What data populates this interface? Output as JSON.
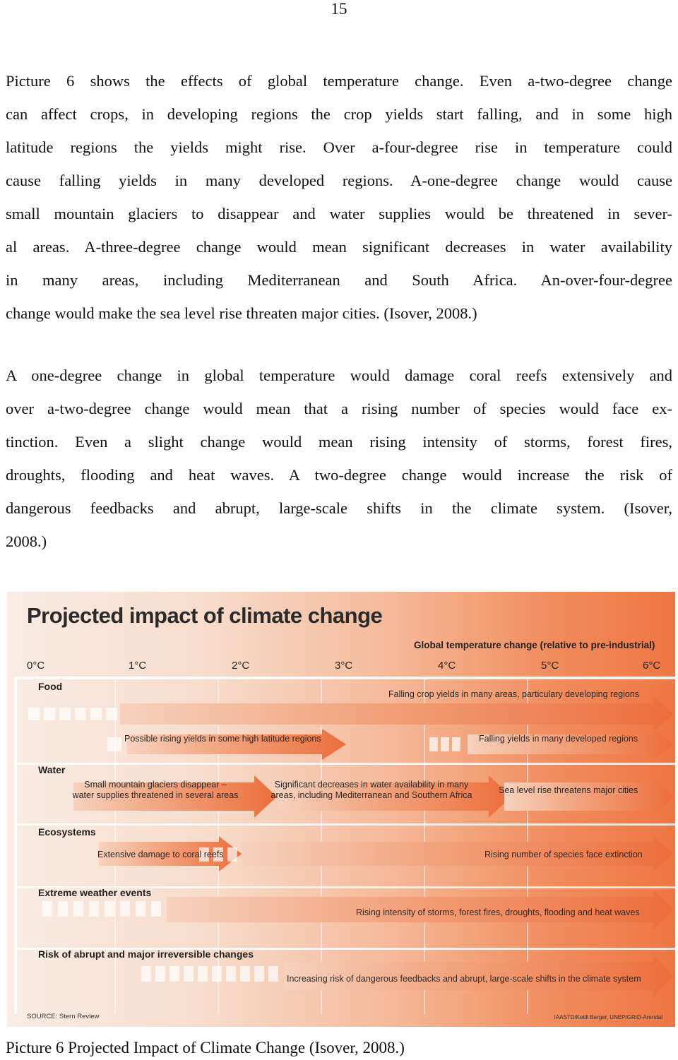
{
  "page_number": "15",
  "paragraphs": [
    {
      "lines": [
        "Picture 6 shows the effects of global temperature change. Even a-two-degree change",
        "can affect crops, in developing regions the crop yields start falling, and in some high",
        "latitude regions the yields might rise. Over a-four-degree rise in temperature could",
        "cause falling yields in many developed regions. A-one-degree change would cause",
        "small mountain glaciers to disappear and water supplies would be threatened in sever-",
        "al areas. A-three-degree change would mean significant decreases in water availability",
        "in many areas, including Mediterranean and South Africa. An-over-four-degree",
        "change would make the sea level rise threaten major cities. (Isover, 2008.)"
      ]
    },
    {
      "lines": [
        "A one-degree change in global temperature would damage coral reefs extensively and",
        "over a-two-degree change would mean that a rising number of species would face ex-",
        "tinction. Even a slight change would mean rising intensity of storms, forest fires,",
        "droughts, flooding and heat waves. A two-degree change would increase the risk of",
        "dangerous feedbacks and abrupt, large-scale shifts in the climate system. (Isover,",
        "2008.)"
      ]
    }
  ],
  "figure": {
    "title": "Projected impact of climate change",
    "axis_title": "Global temperature change (relative to pre-industrial)",
    "ticks": [
      "0°C",
      "1°C",
      "2°C",
      "3°C",
      "4°C",
      "5°C",
      "6°C"
    ],
    "categories": {
      "food": "Food",
      "water": "Water",
      "ecosystems": "Ecosystems",
      "weather": "Extreme weather events",
      "abrupt": "Risk of abrupt and major irreversible changes"
    },
    "impacts": {
      "falling_crop": "Falling crop yields in many areas, particulary developing regions",
      "rising_yields": "Possible rising yields in some high latitude regions",
      "falling_developed": "Falling yields in many developed regions",
      "glaciers_1": "Small mountain glaciers disappear –",
      "glaciers_2": "water supplies threatened in several areas",
      "water_decrease_1": "Significant decreases in water availability in many",
      "water_decrease_2": "areas, including Mediterranean and Southern Africa",
      "sea_level": "Sea level rise threatens major cities",
      "coral": "Extensive damage to coral reefs",
      "species": "Rising number of species face extinction",
      "storms": "Rising intensity of storms, forest fires, droughts, flooding and heat waves",
      "feedbacks": "Increasing risk of dangerous feedbacks and abrupt, large-scale shifts in the climate system"
    },
    "source": "SOURCE: Stern Review",
    "credit": "IAASTD/Ketill Berger, UNEP/GRID-Arendal",
    "colors": {
      "arrow": "#ee7a4b",
      "arrow_light": "#f7d6c3",
      "band": "#ffffff"
    }
  },
  "caption": "Picture 6 Projected Impact of Climate Change (Isover, 2008.)"
}
